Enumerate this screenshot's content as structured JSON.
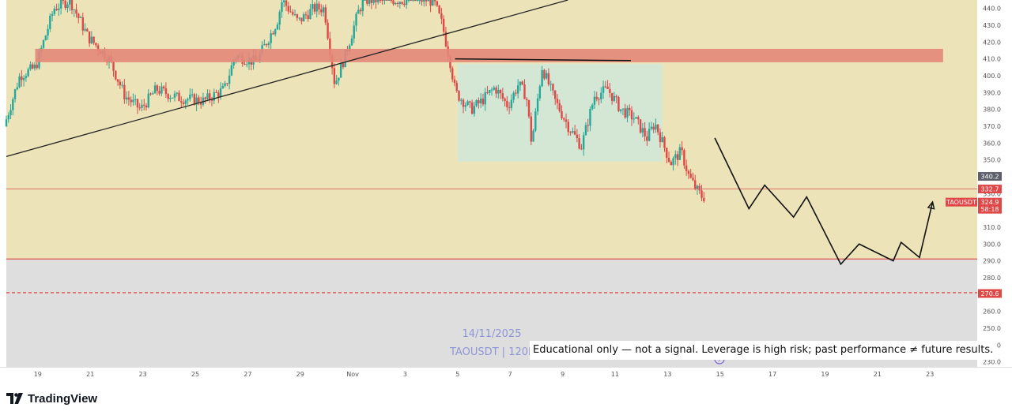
{
  "app": {
    "brand": "TradingView"
  },
  "overlay": {
    "watermark_date": "14/11/2025",
    "watermark_symbol": "TAOUSDT  |  120M",
    "disclaimer": "Educational only — not a signal. Leverage is high risk; past performance ≠ future results."
  },
  "colors": {
    "upper_background": "#ece4b8",
    "lower_background": "#dedede",
    "candle_up": "#27a69a",
    "candle_down": "#e04848",
    "resistance_zone": "#e3877a",
    "range_box": "#cfe8d8",
    "support_line": "#e06060",
    "projection": "#111111"
  },
  "chart_data": {
    "type": "candlestick",
    "symbol": "TAOUSDT",
    "interval": "120M",
    "y_ticks": [
      230.0,
      240.0,
      250.0,
      260.0,
      270.0,
      280.0,
      290.0,
      300.0,
      310.0,
      320.0,
      330.0,
      340.0,
      350.0,
      360.0,
      370.0,
      380.0,
      390.0,
      400.0,
      410.0,
      420.0,
      430.0,
      440.0
    ],
    "y_tick_labels": [
      "230.0",
      "240.0",
      "250.0",
      "260.0",
      "270.0",
      "280.0",
      "290.0",
      "300.0",
      "310.0",
      "320.0",
      "330.0",
      "340.0",
      "350.0",
      "360.0",
      "370.0",
      "380.0",
      "390.0",
      "400.0",
      "410.0",
      "420.0",
      "430.0",
      "440.0"
    ],
    "x_tick_labels": [
      "19",
      "21",
      "23",
      "25",
      "27",
      "29",
      "Nov",
      "3",
      "5",
      "7",
      "9",
      "11",
      "13",
      "15",
      "17",
      "19",
      "21",
      "23"
    ],
    "x_tick_days": [
      -12,
      -10,
      -8,
      -6,
      -4,
      -2,
      0,
      2,
      4,
      6,
      8,
      10,
      12,
      14,
      16,
      18,
      20,
      22
    ],
    "ylim": [
      227,
      445
    ],
    "xlim": [
      -13.2,
      23.8
    ],
    "anchor_points": [
      {
        "day": -13.2,
        "price": 370
      },
      {
        "day": -12.6,
        "price": 400
      },
      {
        "day": -12,
        "price": 405
      },
      {
        "day": -11.3,
        "price": 440
      },
      {
        "day": -10.7,
        "price": 445
      },
      {
        "day": -10,
        "price": 423
      },
      {
        "day": -9.2,
        "price": 410
      },
      {
        "day": -8.6,
        "price": 388
      },
      {
        "day": -8,
        "price": 380
      },
      {
        "day": -7.4,
        "price": 392
      },
      {
        "day": -6.6,
        "price": 387
      },
      {
        "day": -5.6,
        "price": 385
      },
      {
        "day": -4.8,
        "price": 392
      },
      {
        "day": -4.4,
        "price": 412
      },
      {
        "day": -3.6,
        "price": 408
      },
      {
        "day": -2.8,
        "price": 432
      },
      {
        "day": -2.6,
        "price": 445
      },
      {
        "day": -2,
        "price": 432
      },
      {
        "day": -1.4,
        "price": 440
      },
      {
        "day": -1,
        "price": 440
      },
      {
        "day": -0.6,
        "price": 395
      },
      {
        "day": -0.2,
        "price": 412
      },
      {
        "day": 0.3,
        "price": 438
      },
      {
        "day": 0.5,
        "price": 445
      },
      {
        "day": 1,
        "price": 445
      },
      {
        "day": 3,
        "price": 445
      },
      {
        "day": 3.2,
        "price": 443
      },
      {
        "day": 3.5,
        "price": 430
      },
      {
        "day": 3.8,
        "price": 408
      },
      {
        "day": 4,
        "price": 390
      },
      {
        "day": 4.6,
        "price": 380
      },
      {
        "day": 5,
        "price": 385
      },
      {
        "day": 5.5,
        "price": 393
      },
      {
        "day": 6,
        "price": 382
      },
      {
        "day": 6.4,
        "price": 395
      },
      {
        "day": 6.7,
        "price": 388
      },
      {
        "day": 6.9,
        "price": 360
      },
      {
        "day": 7.3,
        "price": 405
      },
      {
        "day": 7.8,
        "price": 385
      },
      {
        "day": 8.3,
        "price": 370
      },
      {
        "day": 8.8,
        "price": 358
      },
      {
        "day": 9.3,
        "price": 388
      },
      {
        "day": 9.8,
        "price": 392
      },
      {
        "day": 10.3,
        "price": 380
      },
      {
        "day": 10.8,
        "price": 375
      },
      {
        "day": 11.3,
        "price": 363
      },
      {
        "day": 11.6,
        "price": 372
      },
      {
        "day": 11.9,
        "price": 360
      },
      {
        "day": 12.2,
        "price": 348
      },
      {
        "day": 12.6,
        "price": 355
      },
      {
        "day": 12.9,
        "price": 340
      },
      {
        "day": 13.2,
        "price": 332
      },
      {
        "day": 13.4,
        "price": 328
      }
    ],
    "trendline": {
      "from": {
        "day": -13.2,
        "price": 352
      },
      "to": {
        "day": 8.2,
        "price": 445
      }
    },
    "neckline": {
      "from": {
        "day": 3.9,
        "price": 410
      },
      "to": {
        "day": 10.6,
        "price": 409
      }
    },
    "resistance_zone": {
      "day_from": -12.1,
      "day_to": 22.5,
      "price_low": 408,
      "price_high": 416
    },
    "range_box": {
      "day_from": 4.0,
      "day_to": 11.8,
      "price_low": 349,
      "price_high": 407
    },
    "levels": [
      {
        "price": 332.7,
        "label": "332.7",
        "style": "solid-thin"
      },
      {
        "price": 291.1,
        "label": "291.1",
        "style": "solid"
      },
      {
        "price": 271.1,
        "label": "271.1",
        "style": "dashed"
      }
    ],
    "shaded_zone_below": 291.1,
    "price_badges": [
      {
        "price": 340.2,
        "label": "340.2",
        "color": "#5d606b"
      },
      {
        "price": 332.7,
        "label": "332.7",
        "color": "#e04848"
      },
      {
        "price": 270.6,
        "label": "270.6",
        "color": "#e04848"
      }
    ],
    "current_price_badge": {
      "symbol": "TAOUSDT",
      "price": 324.9,
      "label": "324.9",
      "countdown": "58:18",
      "color": "#e04848"
    },
    "projection_path": [
      {
        "day": 13.8,
        "price": 363
      },
      {
        "day": 15.1,
        "price": 321
      },
      {
        "day": 15.7,
        "price": 335
      },
      {
        "day": 16.8,
        "price": 316
      },
      {
        "day": 17.3,
        "price": 328
      },
      {
        "day": 18.6,
        "price": 288
      },
      {
        "day": 19.3,
        "price": 300
      },
      {
        "day": 20.6,
        "price": 290
      },
      {
        "day": 20.9,
        "price": 301
      },
      {
        "day": 21.6,
        "price": 292
      },
      {
        "day": 22.1,
        "price": 325
      }
    ]
  }
}
